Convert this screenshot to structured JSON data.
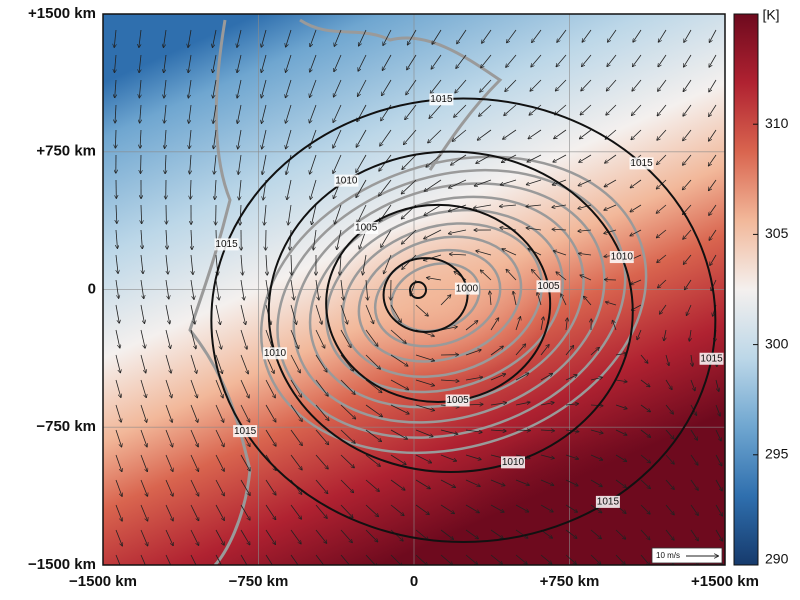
{
  "chart_data": {
    "type": "contour",
    "xlim": [
      -1500,
      1500
    ],
    "ylim": [
      -1500,
      1500
    ],
    "xticks": [
      {
        "value": -1500,
        "label": "−1500 km"
      },
      {
        "value": -750,
        "label": "−750 km"
      },
      0,
      {
        "value": 750,
        "label": "+750 km"
      },
      {
        "value": 1500,
        "label": "+1500 km"
      }
    ],
    "yticks": [
      {
        "value": -1500,
        "label": "−1500 km"
      },
      {
        "value": -750,
        "label": "−750 km"
      },
      0,
      {
        "value": 750,
        "label": "+750 km"
      },
      {
        "value": 1500,
        "label": "+1500 km"
      }
    ],
    "grid": true,
    "colorbar": {
      "label": "[K]",
      "lim": [
        290,
        315
      ],
      "ticks": [
        290,
        295,
        300,
        305,
        310
      ],
      "colormap": [
        "#163a6c",
        "#2f6fae",
        "#6fa6d0",
        "#bcd7e8",
        "#f4f0ee",
        "#f2b89a",
        "#d9654f",
        "#b02231",
        "#6e0a1e"
      ]
    },
    "isobars": [
      1000,
      1005,
      1010,
      1015
    ],
    "wind_scale_label": "10 m/s"
  }
}
